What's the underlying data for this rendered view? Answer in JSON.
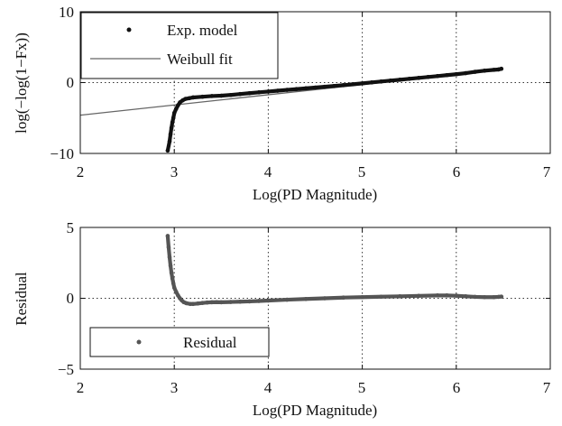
{
  "chart_data": [
    {
      "type": "scatter",
      "xlabel": "Log(PD Magnitude)",
      "ylabel": "log(−log(1−Fx))",
      "xlim": [
        2,
        7
      ],
      "ylim": [
        -10,
        10
      ],
      "xticks": [
        "2",
        "3",
        "4",
        "5",
        "6",
        "7"
      ],
      "yticks": [
        "−10",
        "0",
        "10"
      ],
      "grid": "dotted",
      "legend_position": "top-left",
      "series": [
        {
          "name": "Exp. model",
          "kind": "points",
          "color": "#111111",
          "points": [
            [
              2.93,
              -9.6
            ],
            [
              2.95,
              -8.3
            ],
            [
              2.96,
              -7.3
            ],
            [
              2.97,
              -6.4
            ],
            [
              2.98,
              -5.6
            ],
            [
              2.99,
              -5.0
            ],
            [
              3.0,
              -4.3
            ],
            [
              3.02,
              -3.7
            ],
            [
              3.04,
              -3.2
            ],
            [
              3.06,
              -2.8
            ],
            [
              3.09,
              -2.5
            ],
            [
              3.12,
              -2.3
            ],
            [
              3.16,
              -2.2
            ],
            [
              3.2,
              -2.1
            ],
            [
              3.3,
              -2.0
            ],
            [
              3.4,
              -1.9
            ],
            [
              3.5,
              -1.85
            ],
            [
              3.6,
              -1.75
            ],
            [
              3.7,
              -1.62
            ],
            [
              3.8,
              -1.5
            ],
            [
              3.9,
              -1.38
            ],
            [
              4.0,
              -1.27
            ],
            [
              4.1,
              -1.15
            ],
            [
              4.2,
              -1.03
            ],
            [
              4.3,
              -0.92
            ],
            [
              4.4,
              -0.81
            ],
            [
              4.5,
              -0.7
            ],
            [
              4.6,
              -0.59
            ],
            [
              4.7,
              -0.48
            ],
            [
              4.8,
              -0.36
            ],
            [
              4.9,
              -0.24
            ],
            [
              5.0,
              -0.11
            ],
            [
              5.1,
              0.02
            ],
            [
              5.2,
              0.15
            ],
            [
              5.3,
              0.28
            ],
            [
              5.4,
              0.4
            ],
            [
              5.5,
              0.53
            ],
            [
              5.6,
              0.66
            ],
            [
              5.7,
              0.79
            ],
            [
              5.8,
              0.92
            ],
            [
              5.9,
              1.05
            ],
            [
              6.0,
              1.18
            ],
            [
              6.1,
              1.33
            ],
            [
              6.2,
              1.52
            ],
            [
              6.3,
              1.68
            ],
            [
              6.4,
              1.8
            ],
            [
              6.45,
              1.85
            ],
            [
              6.48,
              1.95
            ]
          ]
        },
        {
          "name": "Weibull fit",
          "kind": "line",
          "color": "#666666",
          "points": [
            [
              2.0,
              -4.6
            ],
            [
              6.48,
              1.85
            ]
          ]
        }
      ]
    },
    {
      "type": "scatter",
      "xlabel": "Log(PD Magnitude)",
      "ylabel": "Residual",
      "xlim": [
        2,
        7
      ],
      "ylim": [
        -5,
        5
      ],
      "xticks": [
        "2",
        "3",
        "4",
        "5",
        "6",
        "7"
      ],
      "yticks": [
        "−5",
        "0",
        "5"
      ],
      "grid": "dotted",
      "legend_position": "bottom-left",
      "series": [
        {
          "name": "Residual",
          "kind": "points",
          "color": "#555555",
          "points": [
            [
              2.93,
              4.4
            ],
            [
              2.94,
              3.6
            ],
            [
              2.95,
              2.9
            ],
            [
              2.96,
              2.3
            ],
            [
              2.97,
              1.8
            ],
            [
              2.98,
              1.4
            ],
            [
              2.99,
              1.05
            ],
            [
              3.0,
              0.75
            ],
            [
              3.02,
              0.45
            ],
            [
              3.04,
              0.2
            ],
            [
              3.06,
              0.0
            ],
            [
              3.08,
              -0.15
            ],
            [
              3.1,
              -0.27
            ],
            [
              3.13,
              -0.35
            ],
            [
              3.17,
              -0.4
            ],
            [
              3.2,
              -0.4
            ],
            [
              3.25,
              -0.37
            ],
            [
              3.3,
              -0.33
            ],
            [
              3.35,
              -0.3
            ],
            [
              3.4,
              -0.28
            ],
            [
              3.45,
              -0.27
            ],
            [
              3.5,
              -0.28
            ],
            [
              3.6,
              -0.26
            ],
            [
              3.7,
              -0.24
            ],
            [
              3.8,
              -0.22
            ],
            [
              3.9,
              -0.19
            ],
            [
              4.0,
              -0.16
            ],
            [
              4.2,
              -0.1
            ],
            [
              4.4,
              -0.05
            ],
            [
              4.6,
              0.0
            ],
            [
              4.8,
              0.05
            ],
            [
              5.0,
              0.08
            ],
            [
              5.2,
              0.11
            ],
            [
              5.4,
              0.14
            ],
            [
              5.6,
              0.17
            ],
            [
              5.8,
              0.2
            ],
            [
              5.9,
              0.2
            ],
            [
              6.0,
              0.18
            ],
            [
              6.1,
              0.14
            ],
            [
              6.2,
              0.1
            ],
            [
              6.3,
              0.08
            ],
            [
              6.4,
              0.08
            ],
            [
              6.45,
              0.1
            ],
            [
              6.48,
              0.12
            ]
          ]
        }
      ]
    }
  ]
}
